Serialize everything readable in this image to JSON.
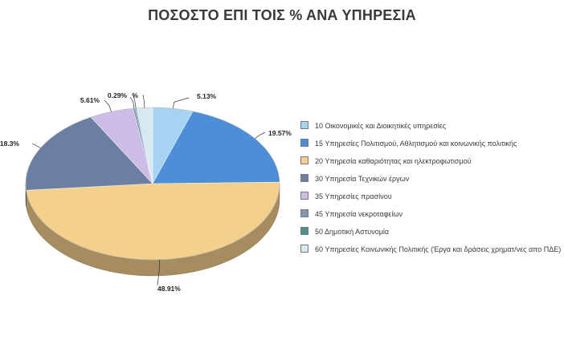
{
  "chart_data": {
    "type": "pie",
    "title": "ΠΟΣΟΣΤΟ ΕΠΙ ΤΟΙΣ % ΑΝΑ ΥΠΗΡΕΣΙΑ",
    "legend_position": "right",
    "slices": [
      {
        "name": "10 Οικονομικές και Διοικητικές υπηρεσίες",
        "value": 5.13,
        "label": "5.13%",
        "color": "#a8d2f2"
      },
      {
        "name": "15 Υπηρεσίες Πολιτισμού, Αθλητισμού και κοινωνικής πολιτικής",
        "value": 19.57,
        "label": "19.57%",
        "color": "#4d8fd6"
      },
      {
        "name": "20 Υπηρεσία καθαριότητας και ηλεκτροφωτισμού",
        "value": 48.91,
        "label": "48.91%",
        "color": "#f3d08b"
      },
      {
        "name": "30 Υπηρεσία Τεχνικών έργων",
        "value": 18.3,
        "label": "18.3%",
        "color": "#6b7fa3"
      },
      {
        "name": "35 Υπηρεσίες πρασίνου",
        "value": 5.61,
        "label": "5.61%",
        "color": "#cdbde6"
      },
      {
        "name": "45 Υπηρεσία νεκροταφείων",
        "value": 0.29,
        "label": "0.29%",
        "color": "#8195b5"
      },
      {
        "name": "50 Δημοτική Αστυνομία",
        "value": 0.15,
        "label": "%",
        "color": "#4f9191"
      },
      {
        "name": "60 Υπηρεσίες Κοινωνικής Πολιτικής (Έργα και δράσεις χρηματ/νες απο ΠΔΕ)",
        "value": 2.04,
        "label": "",
        "color": "#d6e9f2"
      }
    ]
  }
}
